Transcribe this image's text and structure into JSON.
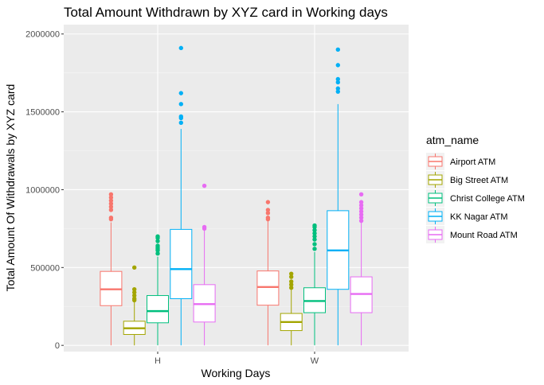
{
  "chart_data": {
    "type": "boxplot",
    "title": "Total Amount Withdrawn by XYZ card in Working days",
    "xlabel": "Working Days",
    "ylabel": "Total Amount Of Withdrawals by XYZ card",
    "ylim": [
      -40000,
      2060000
    ],
    "yticks": [
      0,
      500000,
      1000000,
      1500000,
      2000000
    ],
    "ytick_labels": [
      "0",
      "500000",
      "1000000",
      "1500000",
      "2000000"
    ],
    "categories": [
      "H",
      "W"
    ],
    "grid": true,
    "legend": {
      "title": "atm_name",
      "position": "right"
    },
    "series": [
      {
        "name": "Airport ATM",
        "color": "#F8766D",
        "boxes": [
          {
            "category": "H",
            "min": 0,
            "q1": 255000,
            "median": 360000,
            "q3": 475000,
            "max": 790000,
            "outliers": [
              820000,
              810000,
              870000,
              890000,
              910000,
              930000,
              950000,
              970000
            ]
          },
          {
            "category": "W",
            "min": 0,
            "q1": 258000,
            "median": 375000,
            "q3": 478000,
            "max": 800000,
            "outliers": [
              810000,
              820000,
              850000,
              870000,
              920000
            ]
          }
        ]
      },
      {
        "name": "Big Street ATM",
        "color": "#A3A500",
        "boxes": [
          {
            "category": "H",
            "min": 0,
            "q1": 70000,
            "median": 110000,
            "q3": 155000,
            "max": 280000,
            "outliers": [
              290000,
              300000,
              320000,
              340000,
              360000,
              500000
            ]
          },
          {
            "category": "W",
            "min": 0,
            "q1": 95000,
            "median": 150000,
            "q3": 205000,
            "max": 360000,
            "outliers": [
              370000,
              390000,
              410000,
              440000,
              460000
            ]
          }
        ]
      },
      {
        "name": "Christ College ATM",
        "color": "#00BF7D",
        "boxes": [
          {
            "category": "H",
            "min": 0,
            "q1": 145000,
            "median": 220000,
            "q3": 320000,
            "max": 570000,
            "outliers": [
              590000,
              610000,
              620000,
              630000,
              640000,
              670000,
              690000,
              700000
            ]
          },
          {
            "category": "W",
            "min": 0,
            "q1": 210000,
            "median": 285000,
            "q3": 370000,
            "max": 600000,
            "outliers": [
              620000,
              650000,
              680000,
              700000,
              720000,
              740000,
              760000,
              770000
            ]
          }
        ]
      },
      {
        "name": "KK Nagar ATM",
        "color": "#00B0F6",
        "boxes": [
          {
            "category": "H",
            "min": 0,
            "q1": 300000,
            "median": 490000,
            "q3": 745000,
            "max": 1390000,
            "outliers": [
              1430000,
              1460000,
              1470000,
              1550000,
              1620000,
              1910000
            ]
          },
          {
            "category": "W",
            "min": 0,
            "q1": 360000,
            "median": 610000,
            "q3": 865000,
            "max": 1550000,
            "outliers": [
              1630000,
              1650000,
              1690000,
              1710000,
              1800000,
              1900000
            ]
          }
        ]
      },
      {
        "name": "Mount Road ATM",
        "color": "#E76BF3",
        "boxes": [
          {
            "category": "H",
            "min": 0,
            "q1": 150000,
            "median": 265000,
            "q3": 390000,
            "max": 740000,
            "outliers": [
              750000,
              760000,
              1025000
            ]
          },
          {
            "category": "W",
            "min": 0,
            "q1": 210000,
            "median": 330000,
            "q3": 440000,
            "max": 790000,
            "outliers": [
              800000,
              820000,
              840000,
              860000,
              880000,
              900000,
              920000,
              970000
            ]
          }
        ]
      }
    ]
  }
}
